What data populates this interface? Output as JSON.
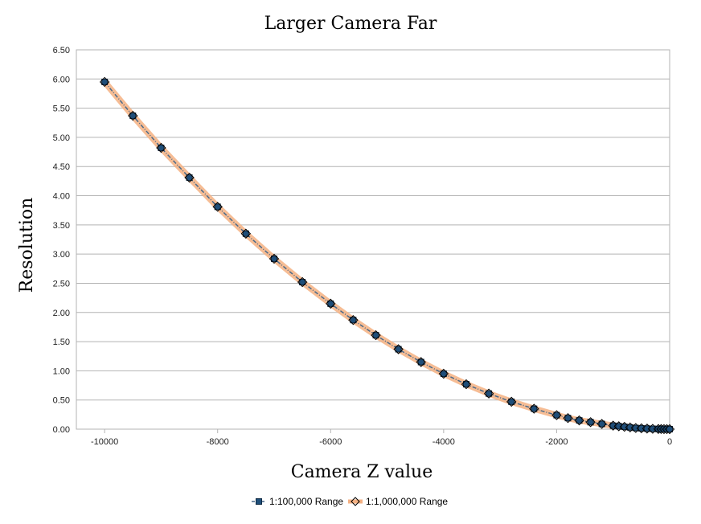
{
  "chart_data": {
    "type": "line",
    "title": "Larger Camera Far",
    "xlabel": "Camera Z value",
    "ylabel": "Resolution",
    "xlim": [
      -10500,
      0
    ],
    "ylim": [
      0,
      6.5
    ],
    "xticks": [
      -10000,
      -8000,
      -6000,
      -4000,
      -2000,
      0
    ],
    "xtick_labels": [
      "-10000",
      "-8000",
      "-6000",
      "-4000",
      "-2000",
      "0"
    ],
    "yticks": [
      0,
      0.5,
      1,
      1.5,
      2,
      2.5,
      3,
      3.5,
      4,
      4.5,
      5,
      5.5,
      6,
      6.5
    ],
    "ytick_labels": [
      "0.00",
      "0.50",
      "1.00",
      "1.50",
      "2.00",
      "2.50",
      "3.00",
      "3.50",
      "4.00",
      "4.50",
      "5.00",
      "5.50",
      "6.00",
      "6.50"
    ],
    "grid": "horizontal",
    "legend_position": "bottom",
    "x": [
      -10000,
      -9500,
      -9000,
      -8500,
      -8000,
      -7500,
      -7000,
      -6500,
      -6000,
      -5600,
      -5200,
      -4800,
      -4400,
      -4000,
      -3600,
      -3200,
      -2800,
      -2400,
      -2000,
      -1800,
      -1600,
      -1400,
      -1200,
      -1000,
      -900,
      -800,
      -700,
      -600,
      -500,
      -400,
      -300,
      -200,
      -150,
      -100,
      -50,
      0
    ],
    "series": [
      {
        "name": "1:100,000 Range",
        "color": "#1f4e79",
        "marker": "square",
        "values": [
          5.95,
          5.37,
          4.82,
          4.31,
          3.81,
          3.35,
          2.92,
          2.52,
          2.15,
          1.87,
          1.61,
          1.37,
          1.15,
          0.95,
          0.77,
          0.61,
          0.47,
          0.35,
          0.24,
          0.19,
          0.15,
          0.12,
          0.09,
          0.06,
          0.05,
          0.04,
          0.03,
          0.02,
          0.015,
          0.01,
          0.006,
          0.003,
          0.002,
          0.001,
          0.0005,
          0.0
        ]
      },
      {
        "name": "1:1,000,000 Range",
        "color": "#f4b183",
        "marker": "diamond",
        "values": [
          5.95,
          5.37,
          4.82,
          4.31,
          3.81,
          3.35,
          2.92,
          2.52,
          2.15,
          1.87,
          1.61,
          1.37,
          1.15,
          0.95,
          0.77,
          0.61,
          0.47,
          0.35,
          0.24,
          0.19,
          0.15,
          0.12,
          0.09,
          0.06,
          0.05,
          0.04,
          0.03,
          0.02,
          0.015,
          0.01,
          0.006,
          0.003,
          0.002,
          0.001,
          0.0005,
          0.0
        ]
      }
    ]
  }
}
